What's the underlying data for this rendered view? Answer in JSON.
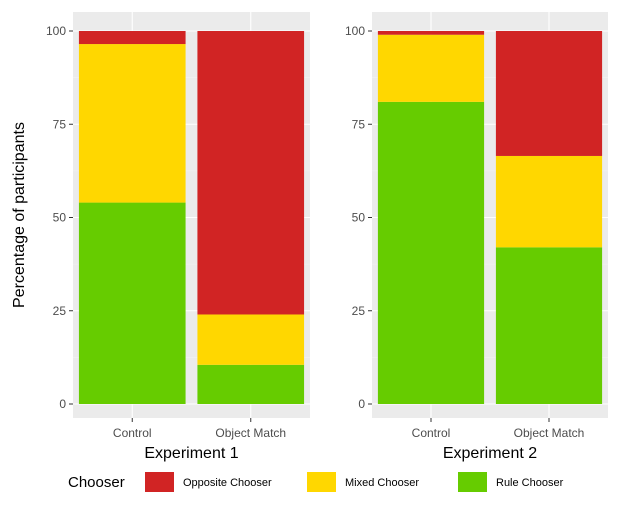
{
  "chart_data": {
    "type": "bar",
    "stacked": true,
    "ylabel": "Percentage of participants",
    "ylim": [
      0,
      100
    ],
    "yticks": [
      0,
      25,
      50,
      75,
      100
    ],
    "grid": true,
    "legend": {
      "title": "Chooser",
      "placement": "bottom",
      "entries": [
        {
          "name": "Opposite Chooser",
          "color": "#d12424"
        },
        {
          "name": "Mixed Chooser",
          "color": "#ffd700"
        },
        {
          "name": "Rule Chooser",
          "color": "#66cc00"
        }
      ]
    },
    "panels": [
      {
        "xlabel": "Experiment 1",
        "categories": [
          "Control",
          "Object Match"
        ],
        "series": [
          {
            "name": "Rule Chooser",
            "values": [
              54,
              10.5
            ]
          },
          {
            "name": "Mixed Chooser",
            "values": [
              42.5,
              13.5
            ]
          },
          {
            "name": "Opposite Chooser",
            "values": [
              3.5,
              76
            ]
          }
        ]
      },
      {
        "xlabel": "Experiment 2",
        "categories": [
          "Control",
          "Object Match"
        ],
        "series": [
          {
            "name": "Rule Chooser",
            "values": [
              81,
              42
            ]
          },
          {
            "name": "Mixed Chooser",
            "values": [
              18,
              24.5
            ]
          },
          {
            "name": "Opposite Chooser",
            "values": [
              1,
              33.5
            ]
          }
        ]
      }
    ]
  }
}
